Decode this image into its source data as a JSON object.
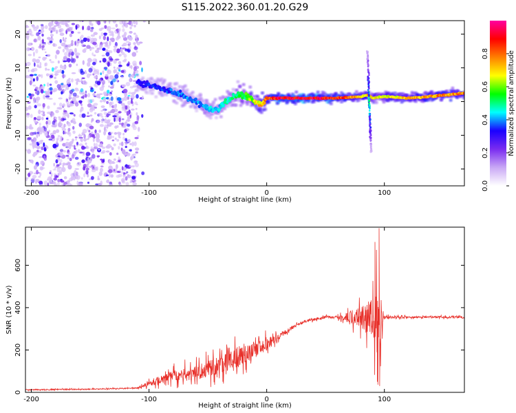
{
  "figure_title": "S115.2022.360.01.20.G29",
  "colors": {
    "snr_line": "#e8302a",
    "frame": "#000000",
    "background": "#ffffff"
  },
  "chart_data": [
    {
      "type": "heatmap",
      "title": "S115.2022.360.01.20.G29",
      "xlabel": "Height of straight line (km)",
      "ylabel": "Frequency (Hz)",
      "xlim": [
        -205,
        168
      ],
      "ylim": [
        -25,
        24
      ],
      "x_ticks": [
        -200,
        -100,
        0,
        100
      ],
      "y_ticks": [
        -20,
        -10,
        0,
        10,
        20
      ],
      "colorbar": {
        "label": "Normalized spectral amplitude",
        "range": [
          0,
          1
        ],
        "ticks": [
          "0.0",
          "0.2",
          "0.4",
          "0.6",
          "0.8"
        ],
        "colormap": [
          "#ffffff",
          "#c9a8f5",
          "#7a2cf0",
          "#1a00ff",
          "#00ffff",
          "#00ff00",
          "#ffff00",
          "#ff8000",
          "#ff0000",
          "#ff00a0"
        ]
      },
      "ridge": {
        "x": [
          -110,
          -100,
          -90,
          -80,
          -70,
          -60,
          -50,
          -45,
          -40,
          -35,
          -30,
          -25,
          -20,
          -15,
          -10,
          -5,
          0,
          10,
          40,
          60,
          80,
          86,
          90,
          100,
          120,
          140,
          168
        ],
        "freq_hz": [
          5.5,
          5,
          4,
          3,
          1.5,
          0,
          -2,
          -2.5,
          -2,
          0,
          1,
          2,
          2,
          1,
          0,
          -1,
          1,
          1,
          1,
          1,
          1.5,
          2,
          1,
          1.5,
          1,
          1.5,
          2.5
        ],
        "amplitude": [
          0.35,
          0.35,
          0.35,
          0.4,
          0.4,
          0.4,
          0.45,
          0.45,
          0.45,
          0.5,
          0.5,
          0.55,
          0.55,
          0.6,
          0.7,
          0.75,
          0.8,
          0.95,
          0.95,
          0.9,
          0.75,
          0.75,
          0.7,
          0.7,
          0.75,
          0.8,
          0.8
        ]
      },
      "noise_region_x": [
        -205,
        -110
      ],
      "spike": {
        "x": 87,
        "freq_range_hz": [
          -15,
          15
        ]
      }
    },
    {
      "type": "line",
      "xlabel": "Height of straight line (km)",
      "ylabel": "SNR (10 * v/v)",
      "xlim": [
        -205,
        168
      ],
      "ylim": [
        0,
        780
      ],
      "x_ticks": [
        -200,
        -100,
        0,
        100
      ],
      "y_ticks": [
        0,
        200,
        400,
        600
      ],
      "trend": {
        "x": [
          -205,
          -150,
          -110,
          -100,
          -90,
          -80,
          -60,
          -40,
          -20,
          0,
          20,
          30,
          50,
          60,
          70,
          80,
          90,
          92,
          94,
          96,
          98,
          100,
          120,
          140,
          168
        ],
        "y": [
          12,
          15,
          20,
          40,
          60,
          75,
          95,
          130,
          180,
          225,
          300,
          330,
          355,
          355,
          355,
          355,
          355,
          355,
          355,
          355,
          355,
          355,
          355,
          355,
          355
        ]
      },
      "oscillation": {
        "x": [
          -110,
          -100,
          -80,
          -60,
          -40,
          -20,
          0,
          10,
          30,
          60,
          70,
          80,
          86,
          90,
          92,
          94,
          96,
          98,
          100,
          120,
          168
        ],
        "amplitude": [
          5,
          25,
          60,
          80,
          100,
          110,
          70,
          30,
          10,
          15,
          60,
          110,
          160,
          220,
          300,
          380,
          340,
          120,
          15,
          10,
          10
        ]
      },
      "peaks": [
        {
          "x": 92,
          "y": 710
        },
        {
          "x": 94,
          "y": 50
        },
        {
          "x": 95.5,
          "y": 775
        },
        {
          "x": 96,
          "y": 30
        }
      ]
    }
  ]
}
